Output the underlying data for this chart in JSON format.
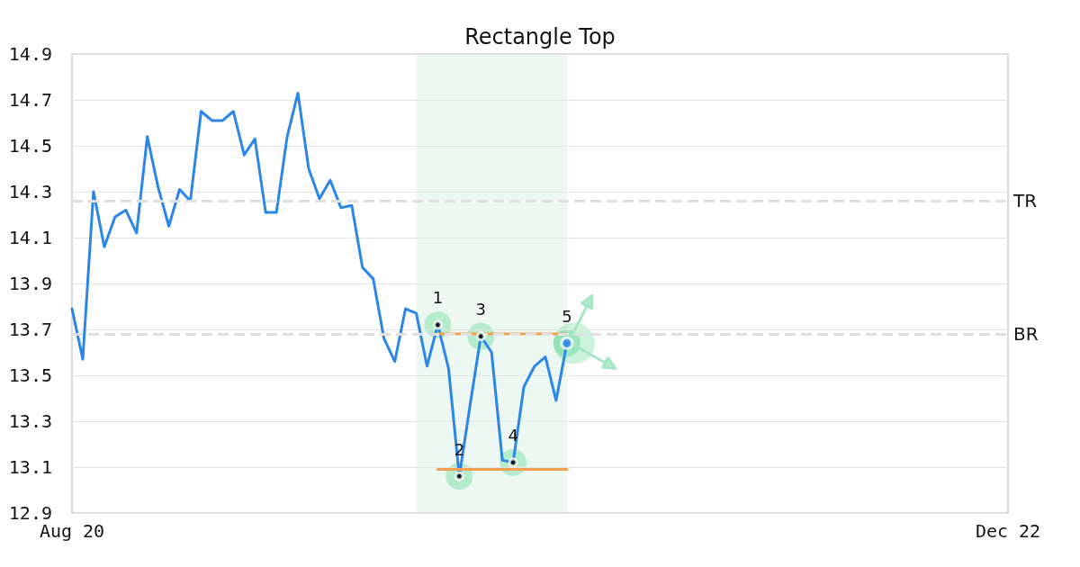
{
  "chart_data": {
    "type": "line",
    "title": "Rectangle Top",
    "categories": [
      "Aug 20",
      null,
      null,
      null,
      null,
      null,
      null,
      null,
      null,
      null,
      null,
      null,
      null,
      null,
      null,
      null,
      null,
      null,
      null,
      null,
      null,
      null,
      null,
      null,
      null,
      null,
      null,
      null,
      null,
      null,
      null,
      null,
      null,
      null,
      null,
      null,
      null,
      null,
      null,
      null,
      null,
      null,
      null,
      null,
      null,
      null,
      null,
      null,
      null,
      null,
      null,
      null,
      null,
      null,
      null,
      null,
      null,
      null,
      null,
      null,
      null,
      null,
      null,
      null,
      null,
      null,
      null,
      null,
      null,
      null,
      null,
      null,
      null,
      null,
      null,
      null,
      null,
      null,
      null,
      null,
      null,
      null,
      null,
      null,
      null,
      null,
      null,
      "Dec 22"
    ],
    "series": [
      {
        "color": "#2b86e8",
        "values": [
          13.79,
          13.57,
          14.3,
          14.06,
          14.19,
          14.22,
          14.12,
          14.54,
          14.32,
          14.15,
          14.31,
          14.26,
          14.65,
          14.61,
          14.61,
          14.65,
          14.46,
          14.53,
          14.21,
          14.21,
          14.54,
          14.73,
          14.4,
          14.27,
          14.35,
          14.23,
          14.24,
          13.97,
          13.92,
          13.66,
          13.56,
          13.79,
          13.77,
          13.54,
          13.72,
          13.53,
          13.06,
          13.37,
          13.67,
          13.6,
          13.13,
          13.12,
          13.45,
          13.54,
          13.58,
          13.39,
          13.64,
          null,
          null,
          null,
          null,
          null,
          null,
          null,
          null,
          null,
          null,
          null,
          null,
          null,
          null,
          null,
          null,
          null,
          null,
          null,
          null,
          null,
          null,
          null,
          null,
          null,
          null,
          null,
          null,
          null,
          null,
          null,
          null,
          null,
          null,
          null,
          null,
          null,
          null,
          null,
          null,
          null
        ]
      },
      {
        "type": "line",
        "color": "#f4a050",
        "values": [
          null,
          null,
          null,
          null,
          null,
          null,
          null,
          null,
          null,
          null,
          null,
          null,
          null,
          null,
          null,
          null,
          null,
          null,
          null,
          null,
          null,
          null,
          null,
          null,
          null,
          null,
          null,
          null,
          null,
          null,
          null,
          null,
          null,
          null,
          13.68,
          13.68,
          13.68,
          13.68,
          13.68,
          13.68,
          13.68,
          13.68,
          13.68,
          13.68,
          13.68,
          13.68,
          13.68,
          null,
          null,
          null,
          null,
          null,
          null,
          null,
          null,
          null,
          null,
          null,
          null,
          null,
          null,
          null,
          null,
          null,
          null,
          null,
          null,
          null,
          null,
          null,
          null,
          null,
          null,
          null,
          null,
          null,
          null,
          null,
          null,
          null,
          null,
          null,
          null,
          null,
          null,
          null,
          null,
          null
        ]
      },
      {
        "type": "line",
        "color": "#f4a050",
        "values": [
          null,
          null,
          null,
          null,
          null,
          null,
          null,
          null,
          null,
          null,
          null,
          null,
          null,
          null,
          null,
          null,
          null,
          null,
          null,
          null,
          null,
          null,
          null,
          null,
          null,
          null,
          null,
          null,
          null,
          null,
          null,
          null,
          null,
          null,
          13.09,
          13.09,
          13.09,
          13.09,
          13.09,
          13.09,
          13.09,
          13.09,
          13.09,
          13.09,
          13.09,
          13.09,
          13.09,
          null,
          null,
          null,
          null,
          null,
          null,
          null,
          null,
          null,
          null,
          null,
          null,
          null,
          null,
          null,
          null,
          null,
          null,
          null,
          null,
          null,
          null,
          null,
          null,
          null,
          null,
          null,
          null,
          null,
          null,
          null,
          null,
          null,
          null,
          null,
          null,
          null,
          null,
          null,
          null,
          null
        ]
      },
      {
        "type": "scatter",
        "marker": "circle",
        "color": "#000000",
        "values": [
          null,
          null,
          null,
          null,
          null,
          null,
          null,
          null,
          null,
          null,
          null,
          null,
          null,
          null,
          null,
          null,
          null,
          null,
          null,
          null,
          null,
          null,
          null,
          null,
          null,
          null,
          null,
          null,
          null,
          null,
          null,
          null,
          null,
          null,
          13.72,
          null,
          13.06,
          null,
          13.67,
          null,
          null,
          13.12,
          null,
          null,
          null,
          null,
          null,
          null,
          null,
          null,
          null,
          null,
          null,
          null,
          null,
          null,
          null,
          null,
          null,
          null,
          null,
          null,
          null,
          null,
          null,
          null,
          null,
          null,
          null,
          null,
          null,
          null,
          null,
          null,
          null,
          null,
          null,
          null,
          null,
          null,
          null,
          null,
          null,
          null,
          null,
          null,
          null,
          null
        ]
      },
      {
        "type": "scatter",
        "marker": "circle",
        "color": "#2b86e8",
        "values": [
          null,
          null,
          null,
          null,
          null,
          null,
          null,
          null,
          null,
          null,
          null,
          null,
          null,
          null,
          null,
          null,
          null,
          null,
          null,
          null,
          null,
          null,
          null,
          null,
          null,
          null,
          null,
          null,
          null,
          null,
          null,
          null,
          null,
          null,
          null,
          null,
          null,
          null,
          null,
          null,
          null,
          null,
          null,
          null,
          null,
          null,
          13.64,
          null,
          null,
          null,
          null,
          null,
          null,
          null,
          null,
          null,
          null,
          null,
          null,
          null,
          null,
          null,
          null,
          null,
          null,
          null,
          null,
          null,
          null,
          null,
          null,
          null,
          null,
          null,
          null,
          null,
          null,
          null,
          null,
          null,
          null,
          null,
          null,
          null,
          null,
          null,
          null,
          null
        ]
      }
    ],
    "ylim": [
      12.9,
      14.9
    ],
    "yticks": [
      12.9,
      13.1,
      13.3,
      13.5,
      13.7,
      13.9,
      14.1,
      14.3,
      14.5,
      14.7,
      14.9
    ],
    "grid": "y",
    "marker": "none",
    "line_style": "solid",
    "ref_lines": [
      {
        "axis": "y",
        "value": 14.26,
        "label": "TR",
        "color": "#e0e0e0",
        "line_style": "dashed"
      },
      {
        "axis": "y",
        "value": 13.68,
        "label": "BR",
        "color": "#e0e0e0",
        "line_style": "dashed"
      }
    ],
    "annotations": [
      {
        "text": "1",
        "y": 13.72
      },
      {
        "text": "2",
        "y": 13.06
      },
      {
        "text": "3",
        "y": 13.67
      },
      {
        "text": "4",
        "y": 13.12
      },
      {
        "text": "5",
        "y": 13.64
      }
    ]
  }
}
